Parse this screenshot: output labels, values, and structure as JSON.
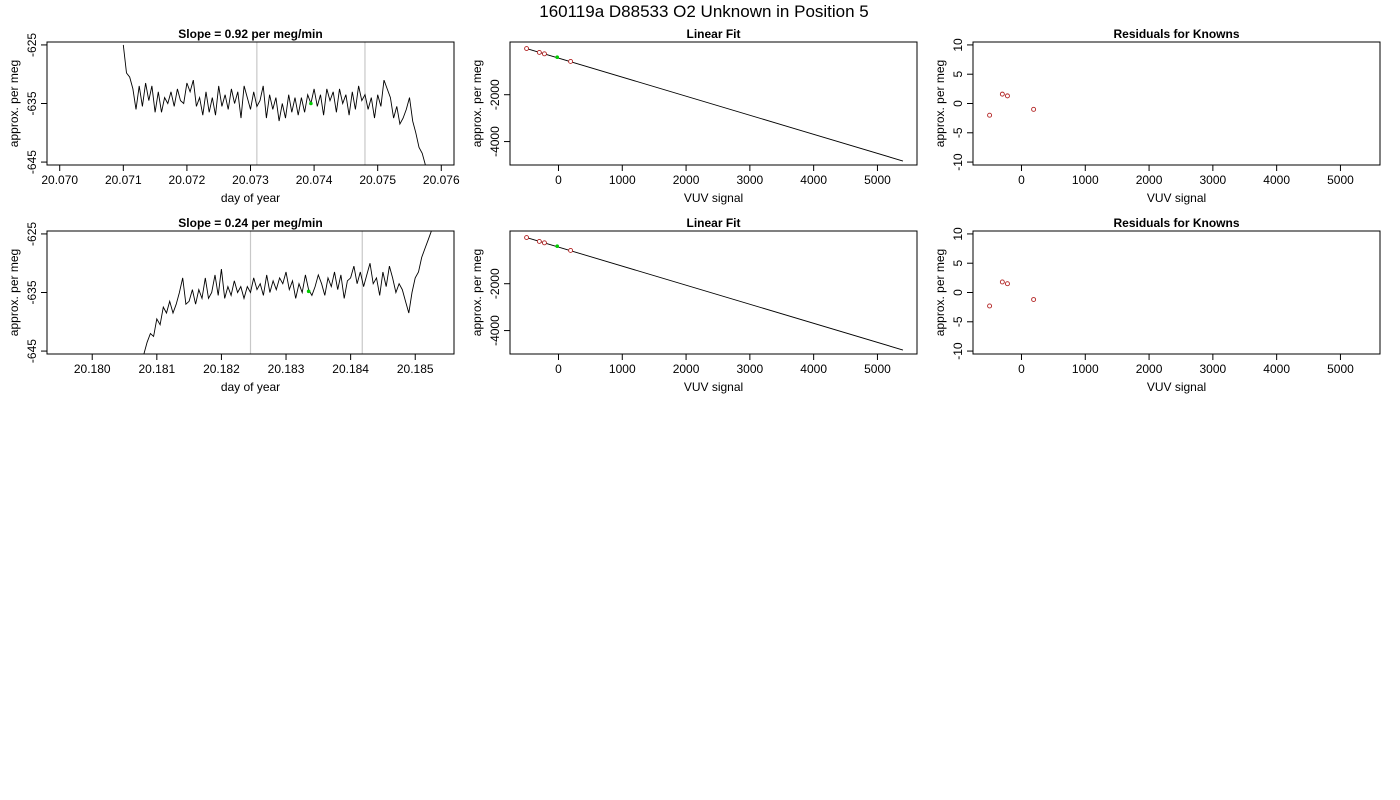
{
  "header": {
    "title": "160119a     D88533   O2 Unknown in Position  5"
  },
  "colors": {
    "line": "#000000",
    "marker_known": "#b22222",
    "marker_unknown": "#00cc00",
    "marker_fill": "#ffffff",
    "vline": "#c8c8c8",
    "frame": "#000000"
  },
  "chart_data": [
    {
      "id": "r1-timeseries",
      "type": "line",
      "title": "Slope =  0.92  per meg/min",
      "xlabel": "day of year",
      "ylabel": "approx. per meg",
      "xlim": [
        20.0698,
        20.0762
      ],
      "ylim": [
        -645.5,
        -624.5
      ],
      "xticks": [
        20.07,
        20.071,
        20.072,
        20.073,
        20.074,
        20.075,
        20.076
      ],
      "xtick_labels": [
        "20.070",
        "20.071",
        "20.072",
        "20.073",
        "20.074",
        "20.075",
        "20.076"
      ],
      "yticks": [
        -645,
        -635,
        -625
      ],
      "ytick_labels": [
        "-645",
        "-635",
        "-625"
      ],
      "vlines": [
        20.0731,
        20.0748
      ],
      "series": [
        {
          "x": [
            20.071,
            20.07105,
            20.0711,
            20.07115,
            20.0712,
            20.07125,
            20.0713,
            20.07135,
            20.0714,
            20.07145,
            20.0715,
            20.07155,
            20.0716,
            20.07165,
            20.0717,
            20.07175,
            20.0718,
            20.07185,
            20.0719,
            20.07195,
            20.072,
            20.07205,
            20.0721,
            20.07215,
            20.0722,
            20.07225,
            20.0723,
            20.07235,
            20.0724,
            20.07245,
            20.0725,
            20.07255,
            20.0726,
            20.07265,
            20.0727,
            20.07275,
            20.0728,
            20.07285,
            20.0729,
            20.07295,
            20.073,
            20.07305,
            20.0731,
            20.07315,
            20.0732,
            20.07325,
            20.0733,
            20.07335,
            20.0734,
            20.07345,
            20.0735,
            20.07355,
            20.0736,
            20.07365,
            20.0737,
            20.07375,
            20.0738,
            20.07385,
            20.0739,
            20.07395,
            20.074,
            20.07405,
            20.0741,
            20.07415,
            20.0742,
            20.07425,
            20.0743,
            20.07435,
            20.0744,
            20.07445,
            20.0745,
            20.07455,
            20.0746,
            20.07465,
            20.0747,
            20.07475,
            20.0748,
            20.07485,
            20.0749,
            20.07495,
            20.075,
            20.07505,
            20.0751,
            20.07515,
            20.0752,
            20.07525,
            20.0753,
            20.07535,
            20.0754,
            20.07545,
            20.0755,
            20.07555,
            20.0756,
            20.07565,
            20.0757,
            20.07575
          ],
          "y": [
            -625,
            -629.8,
            -630.5,
            -632.5,
            -636.0,
            -632.0,
            -635.5,
            -631.5,
            -634.5,
            -632.0,
            -636.5,
            -633.0,
            -636.5,
            -634.0,
            -635.0,
            -633.0,
            -635.5,
            -632.5,
            -634.5,
            -635.0,
            -631.5,
            -633.0,
            -631.0,
            -635.5,
            -634.0,
            -637.0,
            -633.0,
            -636.5,
            -634.0,
            -637.0,
            -632.0,
            -635.5,
            -633.5,
            -636.0,
            -632.5,
            -635.0,
            -633.0,
            -637.5,
            -632.0,
            -634.0,
            -636.0,
            -633.0,
            -635.5,
            -634.5,
            -632.0,
            -637.5,
            -633.5,
            -636.0,
            -634.0,
            -638.0,
            -635.0,
            -637.5,
            -633.5,
            -636.5,
            -634.0,
            -637.0,
            -634.0,
            -636.5,
            -633.5,
            -635.0,
            -632.5,
            -635.5,
            -633.5,
            -637.0,
            -632.5,
            -634.5,
            -633.0,
            -636.5,
            -632.5,
            -635.0,
            -633.5,
            -637.0,
            -633.0,
            -636.0,
            -632.0,
            -634.5,
            -633.5,
            -636.0,
            -634.0,
            -637.5,
            -633.5,
            -635.5,
            -631.0,
            -632.5,
            -634.0,
            -637.5,
            -635.5,
            -638.5,
            -637.5,
            -636.0,
            -634.0,
            -638.0,
            -640.0,
            -642.5,
            -643.5,
            -645.5
          ]
        }
      ],
      "marker": {
        "x": 20.07395,
        "y": -635.0
      }
    },
    {
      "id": "r1-linear",
      "type": "scatter",
      "title": "Linear Fit",
      "xlabel": "VUV signal",
      "ylabel": "approx. per meg",
      "xlim": [
        -760,
        5620
      ],
      "ylim": [
        -5000,
        250
      ],
      "xticks": [
        0,
        1000,
        2000,
        3000,
        4000,
        5000
      ],
      "xtick_labels": [
        "0",
        "1000",
        "2000",
        "3000",
        "4000",
        "5000"
      ],
      "yticks": [
        -4000,
        -2000
      ],
      "ytick_labels": [
        "-4000",
        "-2000"
      ],
      "fit_line": {
        "x": [
          -500,
          5400
        ],
        "y": [
          -30,
          -4830
        ]
      },
      "knowns": {
        "x": [
          -500,
          -300,
          -220,
          190
        ],
        "y": [
          -30,
          -195,
          -255,
          -580
        ]
      },
      "unknown": {
        "x": [
          -20
        ],
        "y": [
          -400
        ]
      }
    },
    {
      "id": "r1-residuals",
      "type": "scatter",
      "title": "Residuals for Knowns",
      "xlabel": "VUV signal",
      "ylabel": "approx. per meg",
      "xlim": [
        -760,
        5620
      ],
      "ylim": [
        -10.5,
        10.5
      ],
      "xticks": [
        0,
        1000,
        2000,
        3000,
        4000,
        5000
      ],
      "xtick_labels": [
        "0",
        "1000",
        "2000",
        "3000",
        "4000",
        "5000"
      ],
      "yticks": [
        -10,
        -5,
        0,
        5,
        10
      ],
      "ytick_labels": [
        "-10",
        "-5",
        "0",
        "5",
        "10"
      ],
      "knowns": {
        "x": [
          -500,
          -300,
          -220,
          190
        ],
        "y": [
          -2.0,
          1.6,
          1.3,
          -1.0
        ]
      }
    },
    {
      "id": "r2-timeseries",
      "type": "line",
      "title": "Slope =  0.24  per meg/min",
      "xlabel": "day of year",
      "ylabel": "approx. per meg",
      "xlim": [
        20.1793,
        20.1856
      ],
      "ylim": [
        -645.5,
        -624.5
      ],
      "xticks": [
        20.18,
        20.181,
        20.182,
        20.183,
        20.184,
        20.185
      ],
      "xtick_labels": [
        "20.180",
        "20.181",
        "20.182",
        "20.183",
        "20.184",
        "20.185"
      ],
      "yticks": [
        -645,
        -635,
        -625
      ],
      "ytick_labels": [
        "-645",
        "-635",
        "-625"
      ],
      "vlines": [
        20.18245,
        20.18418
      ],
      "series": [
        {
          "x": [
            20.1808,
            20.18085,
            20.1809,
            20.18095,
            20.181,
            20.18105,
            20.1811,
            20.18115,
            20.1812,
            20.18125,
            20.1813,
            20.18135,
            20.1814,
            20.18145,
            20.1815,
            20.18155,
            20.1816,
            20.18165,
            20.1817,
            20.18175,
            20.1818,
            20.18185,
            20.1819,
            20.18195,
            20.182,
            20.18205,
            20.1821,
            20.18215,
            20.1822,
            20.18225,
            20.1823,
            20.18235,
            20.1824,
            20.18245,
            20.1825,
            20.18255,
            20.1826,
            20.18265,
            20.1827,
            20.18275,
            20.1828,
            20.18285,
            20.1829,
            20.18295,
            20.183,
            20.18305,
            20.1831,
            20.18315,
            20.1832,
            20.18325,
            20.1833,
            20.18335,
            20.1834,
            20.18345,
            20.1835,
            20.18355,
            20.1836,
            20.18365,
            20.1837,
            20.18375,
            20.1838,
            20.18385,
            20.1839,
            20.18395,
            20.184,
            20.18405,
            20.1841,
            20.18415,
            20.1842,
            20.18425,
            20.1843,
            20.18435,
            20.1844,
            20.18445,
            20.1845,
            20.18455,
            20.1846,
            20.18465,
            20.1847,
            20.18475,
            20.1848,
            20.18485,
            20.1849,
            20.18495,
            20.185,
            20.18505,
            20.1851,
            20.18515,
            20.1852,
            20.18525
          ],
          "y": [
            -645.5,
            -643.5,
            -642.0,
            -642.5,
            -639.5,
            -640.5,
            -637.5,
            -638.5,
            -636.5,
            -638.5,
            -637.0,
            -635.0,
            -632.5,
            -637.0,
            -636.5,
            -634.5,
            -637.0,
            -634.5,
            -636.0,
            -632.5,
            -636.0,
            -635.0,
            -632.0,
            -635.5,
            -631.0,
            -636.0,
            -634.0,
            -635.5,
            -633.0,
            -635.0,
            -634.0,
            -636.0,
            -634.0,
            -635.0,
            -632.5,
            -634.5,
            -633.5,
            -635.5,
            -632.0,
            -635.0,
            -633.0,
            -634.5,
            -632.5,
            -633.5,
            -631.5,
            -634.5,
            -633.0,
            -636.0,
            -633.5,
            -635.0,
            -632.0,
            -634.5,
            -635.5,
            -634.0,
            -632.0,
            -633.5,
            -635.5,
            -632.5,
            -634.0,
            -631.5,
            -634.5,
            -632.0,
            -636.0,
            -633.0,
            -632.5,
            -630.5,
            -633.5,
            -631.5,
            -634.0,
            -632.0,
            -630.0,
            -633.5,
            -632.5,
            -635.5,
            -631.5,
            -634.0,
            -630.5,
            -632.5,
            -635.0,
            -633.5,
            -634.5,
            -636.5,
            -638.5,
            -635.0,
            -632.5,
            -631.5,
            -629.0,
            -627.5,
            -626.0,
            -624.5
          ]
        }
      ],
      "marker": {
        "x": 20.18335,
        "y": -634.8
      }
    },
    {
      "id": "r2-linear",
      "type": "scatter",
      "title": "Linear Fit",
      "xlabel": "VUV signal",
      "ylabel": "approx. per meg",
      "xlim": [
        -760,
        5620
      ],
      "ylim": [
        -5000,
        250
      ],
      "xticks": [
        0,
        1000,
        2000,
        3000,
        4000,
        5000
      ],
      "xtick_labels": [
        "0",
        "1000",
        "2000",
        "3000",
        "4000",
        "5000"
      ],
      "yticks": [
        -4000,
        -2000
      ],
      "ytick_labels": [
        "-4000",
        "-2000"
      ],
      "fit_line": {
        "x": [
          -500,
          5400
        ],
        "y": [
          -30,
          -4830
        ]
      },
      "knowns": {
        "x": [
          -500,
          -300,
          -220,
          190
        ],
        "y": [
          -30,
          -195,
          -255,
          -580
        ]
      },
      "unknown": {
        "x": [
          -20
        ],
        "y": [
          -400
        ]
      }
    },
    {
      "id": "r2-residuals",
      "type": "scatter",
      "title": "Residuals for Knowns",
      "xlabel": "VUV signal",
      "ylabel": "approx. per meg",
      "xlim": [
        -760,
        5620
      ],
      "ylim": [
        -10.5,
        10.5
      ],
      "xticks": [
        0,
        1000,
        2000,
        3000,
        4000,
        5000
      ],
      "xtick_labels": [
        "0",
        "1000",
        "2000",
        "3000",
        "4000",
        "5000"
      ],
      "yticks": [
        -10,
        -5,
        0,
        5,
        10
      ],
      "ytick_labels": [
        "-10",
        "-5",
        "0",
        "5",
        "10"
      ],
      "knowns": {
        "x": [
          -500,
          -300,
          -220,
          190
        ],
        "y": [
          -2.3,
          1.8,
          1.5,
          -1.2
        ]
      }
    }
  ]
}
